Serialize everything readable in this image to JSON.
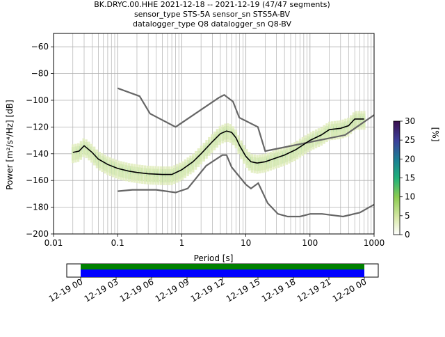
{
  "figure": {
    "title_lines": [
      "BK.DRYC.00.HHE   2021-12-18 -- 2021-12-19  (47/47 segments)",
      "sensor_type STS-5A sensor_sn STS5A-BV",
      "datalogger_type Q8 datalogger_sn Q8-BV"
    ]
  },
  "chart_data": [
    {
      "type": "heatmap",
      "title": "BK.DRYC.00.HHE   2021-12-18 -- 2021-12-19  (47/47 segments)",
      "xlabel": "Period [s]",
      "ylabel": "Power [m²/s⁴/Hz] [dB]",
      "xscale": "log",
      "xlim": [
        0.01,
        1000
      ],
      "ylim": [
        -200,
        -50
      ],
      "x_ticks": [
        0.01,
        0.1,
        1,
        10,
        100,
        1000
      ],
      "x_tick_labels": [
        "0.01",
        "0.1",
        "1",
        "10",
        "100",
        "1000"
      ],
      "y_ticks": [
        -200,
        -180,
        -160,
        -140,
        -120,
        -100,
        -80,
        -60
      ],
      "y_tick_labels": [
        "−200",
        "−180",
        "−160",
        "−140",
        "−120",
        "−100",
        "−80",
        "−60"
      ],
      "grid": true,
      "colorbar": {
        "label": "[%]",
        "range": [
          0,
          30
        ],
        "ticks": [
          0,
          5,
          10,
          15,
          20,
          25,
          30
        ],
        "tick_labels": [
          "0",
          "5",
          "10",
          "15",
          "20",
          "25",
          "30"
        ],
        "colormap": "cubehelix-like (white → green → blue → purple)"
      },
      "mode_line": {
        "name": "mode",
        "color": "#000000",
        "points": [
          [
            0.02,
            -139
          ],
          [
            0.025,
            -138
          ],
          [
            0.03,
            -134
          ],
          [
            0.04,
            -139
          ],
          [
            0.05,
            -144
          ],
          [
            0.07,
            -148
          ],
          [
            0.1,
            -151
          ],
          [
            0.15,
            -153
          ],
          [
            0.2,
            -154
          ],
          [
            0.3,
            -155
          ],
          [
            0.5,
            -155.5
          ],
          [
            0.7,
            -155.5
          ],
          [
            1.0,
            -152
          ],
          [
            1.5,
            -146
          ],
          [
            2.0,
            -140
          ],
          [
            3.0,
            -131
          ],
          [
            4.0,
            -125
          ],
          [
            5.0,
            -123
          ],
          [
            6.0,
            -124
          ],
          [
            7.0,
            -128
          ],
          [
            8.0,
            -134
          ],
          [
            10.0,
            -142
          ],
          [
            12.0,
            -146
          ],
          [
            15.0,
            -147
          ],
          [
            20.0,
            -146
          ],
          [
            30.0,
            -143
          ],
          [
            40.0,
            -141
          ],
          [
            60.0,
            -137
          ],
          [
            80.0,
            -133
          ],
          [
            100.0,
            -130
          ],
          [
            150.0,
            -126
          ],
          [
            200.0,
            -122
          ],
          [
            300.0,
            -121
          ],
          [
            400.0,
            -119
          ],
          [
            500.0,
            -114
          ],
          [
            700.0,
            -114
          ]
        ]
      },
      "noise_models": [
        {
          "name": "high noise model",
          "color": "#666666",
          "points": [
            [
              0.1,
              -91
            ],
            [
              0.22,
              -97
            ],
            [
              0.32,
              -110
            ],
            [
              0.8,
              -120
            ],
            [
              3.8,
              -98
            ],
            [
              4.6,
              -96
            ],
            [
              6.3,
              -101
            ],
            [
              7.9,
              -113
            ],
            [
              15.4,
              -120
            ],
            [
              20,
              -138
            ],
            [
              354,
              -126
            ],
            [
              1000,
              -111
            ]
          ]
        },
        {
          "name": "low noise model",
          "color": "#666666",
          "points": [
            [
              0.1,
              -168
            ],
            [
              0.17,
              -167
            ],
            [
              0.4,
              -167
            ],
            [
              0.8,
              -169
            ],
            [
              1.24,
              -166
            ],
            [
              2.4,
              -149
            ],
            [
              4.3,
              -141
            ],
            [
              5.0,
              -141
            ],
            [
              6.0,
              -150
            ],
            [
              10.0,
              -163
            ],
            [
              12.0,
              -166
            ],
            [
              15.6,
              -162
            ],
            [
              21.9,
              -177
            ],
            [
              31.6,
              -185
            ],
            [
              45,
              -187
            ],
            [
              70,
              -187
            ],
            [
              101,
              -185
            ],
            [
              154,
              -185
            ],
            [
              328,
              -187
            ],
            [
              600,
              -184
            ],
            [
              1000,
              -178
            ]
          ]
        }
      ],
      "density_bands": [
        {
          "name": "core",
          "level_percent": 20,
          "offset_db": [
            -2,
            2
          ]
        },
        {
          "name": "inner",
          "level_percent": 10,
          "offset_db": [
            -6,
            4
          ]
        },
        {
          "name": "outer",
          "level_percent": 3,
          "offset_db": [
            -8,
            6
          ]
        }
      ]
    },
    {
      "type": "table",
      "name": "data coverage timeline",
      "x_tick_labels": [
        "12-19 00",
        "12-19 03",
        "12-19 06",
        "12-19 09",
        "12-19 12",
        "12-19 15",
        "12-19 18",
        "12-19 21",
        "12-20 00"
      ],
      "bars": [
        {
          "name": "coverage",
          "color": "#008000"
        },
        {
          "name": "segments",
          "color": "#0000ff"
        }
      ]
    }
  ]
}
